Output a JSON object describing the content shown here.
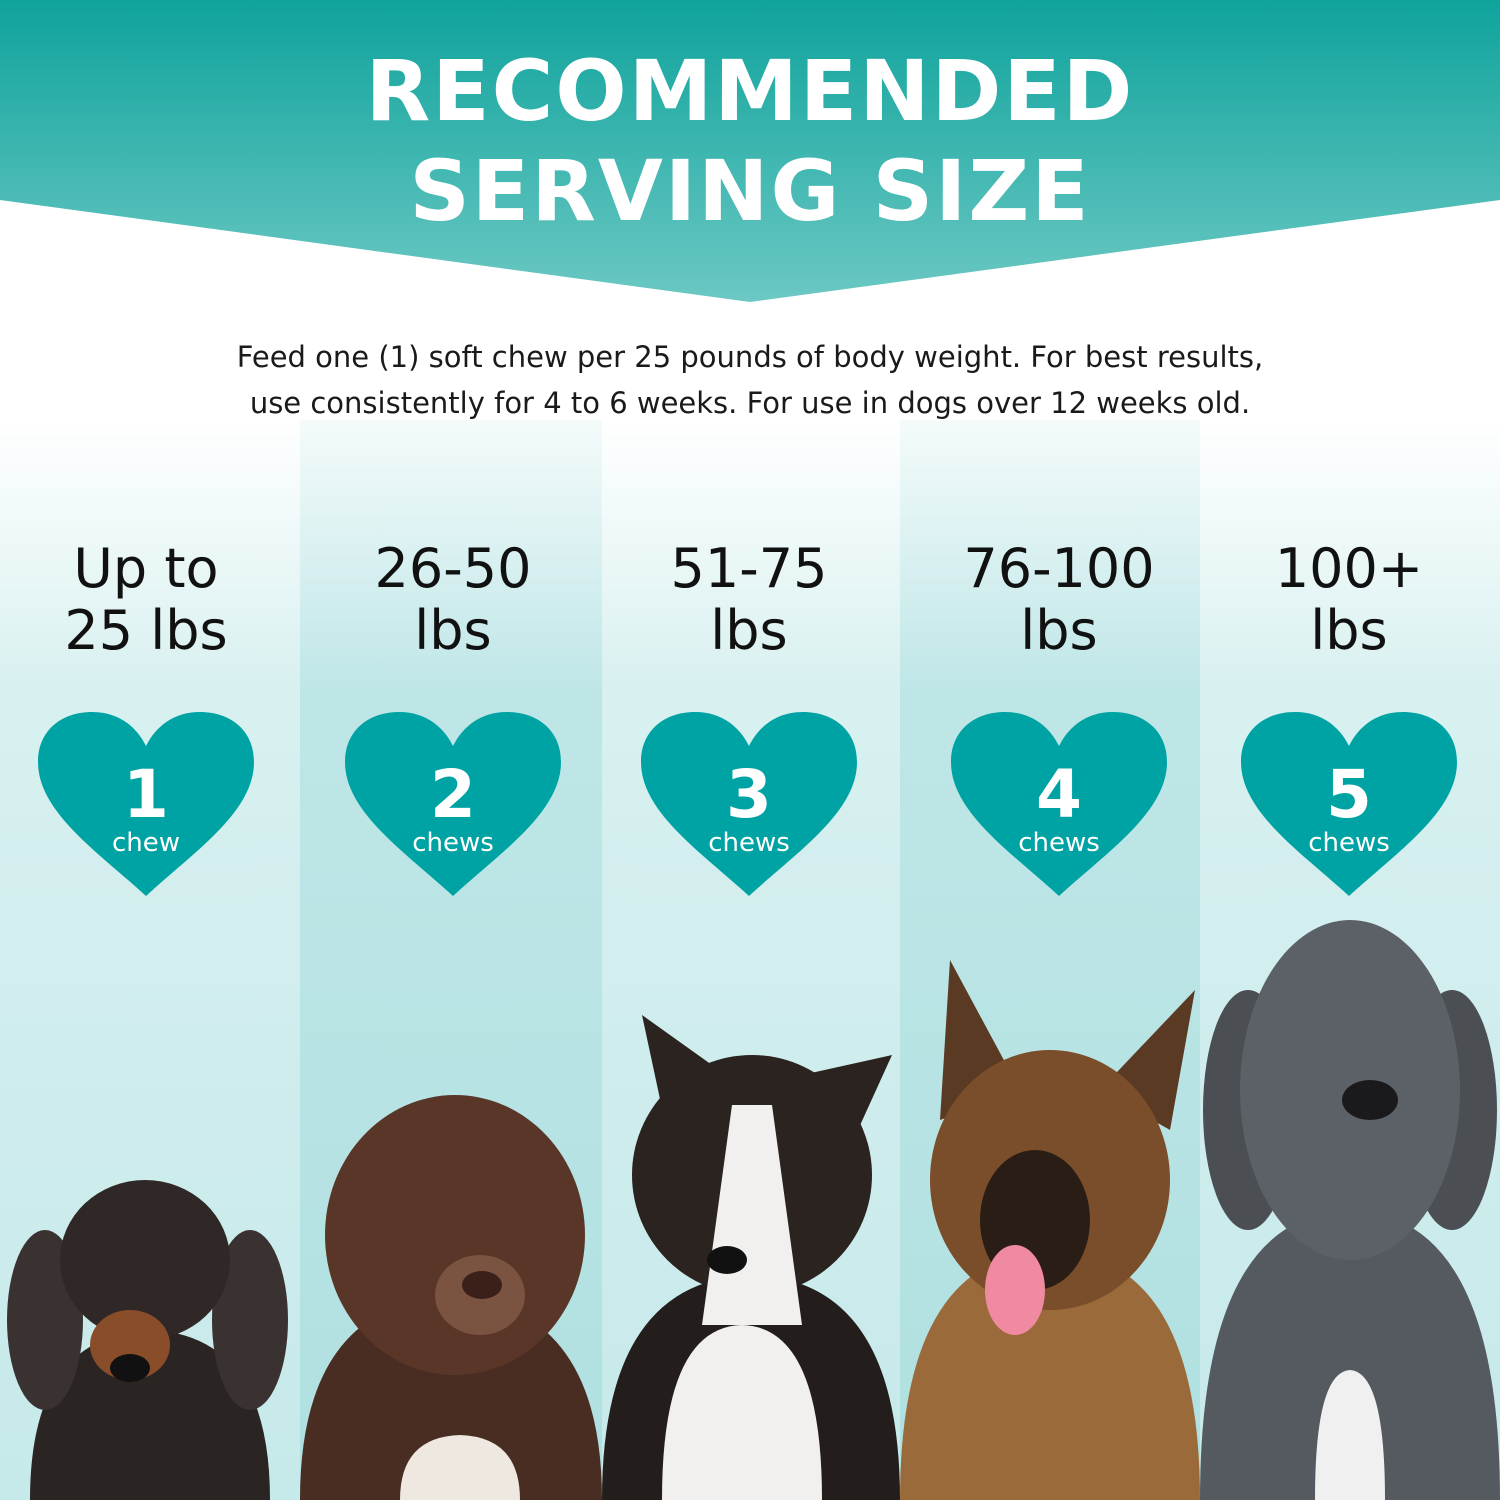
{
  "colors": {
    "teal": "#00a3a3",
    "header_teal": "#1fa8a2",
    "text": "#111111"
  },
  "header": {
    "title_line1": "RECOMMENDED",
    "title_line2": "SERVING SIZE"
  },
  "intro": {
    "line1": "Feed one (1) soft chew per 25 pounds of body weight. For best results,",
    "line2": "use consistently for 4 to 6 weeks. For use in dogs over 12 weeks old."
  },
  "tiers": [
    {
      "weight_line1": "Up to",
      "weight_line2": "25 lbs",
      "count": "1",
      "unit": "chew",
      "dog": "dachshund"
    },
    {
      "weight_line1": "26-50",
      "weight_line2": "lbs",
      "count": "2",
      "unit": "chews",
      "dog": "labradoodle"
    },
    {
      "weight_line1": "51-75",
      "weight_line2": "lbs",
      "count": "3",
      "unit": "chews",
      "dog": "border-collie"
    },
    {
      "weight_line1": "76-100",
      "weight_line2": "lbs",
      "count": "4",
      "unit": "chews",
      "dog": "german-shepherd"
    },
    {
      "weight_line1": "100+",
      "weight_line2": "lbs",
      "count": "5",
      "unit": "chews",
      "dog": "great-dane"
    }
  ]
}
